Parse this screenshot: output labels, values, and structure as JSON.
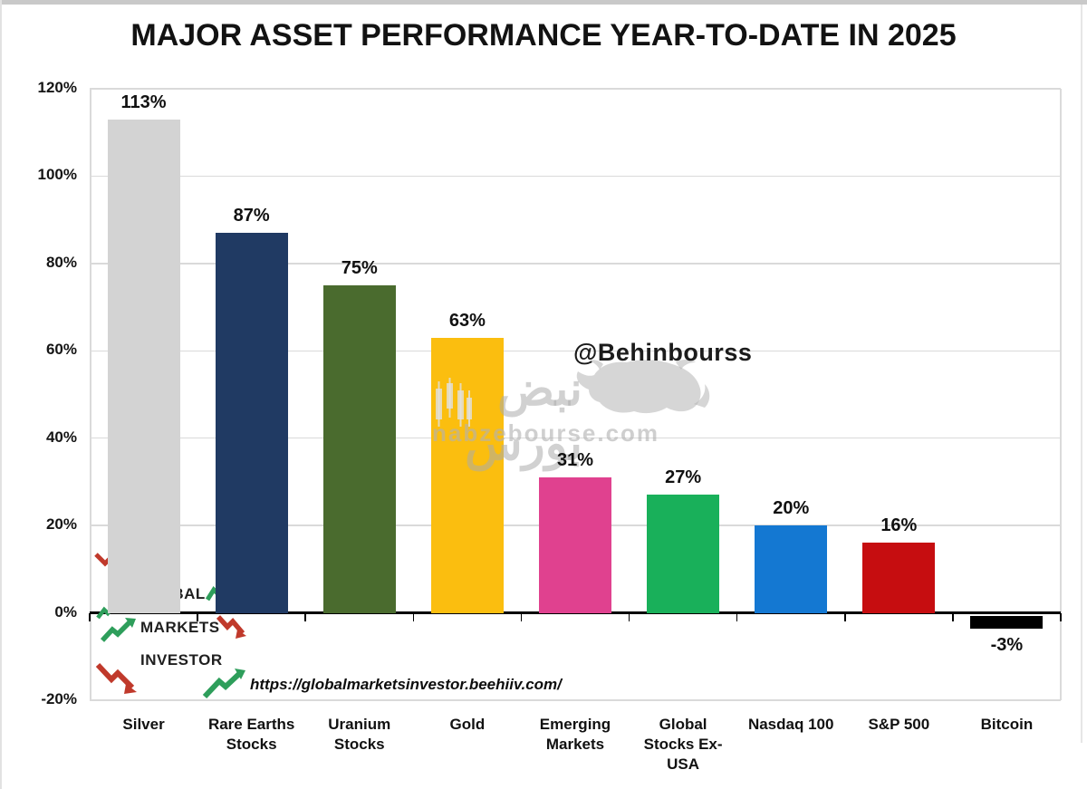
{
  "title": "MAJOR ASSET PERFORMANCE YEAR-TO-DATE IN 2025",
  "watermarks": {
    "handle": "@Behinbourss",
    "site_name": "نبض بورس",
    "site_domain": "nabzebourse.com"
  },
  "source_logo": {
    "line1": "GLOBAL",
    "line2": "MARKETS",
    "line3": "INVESTOR",
    "url": "https://globalmarketsinvestor.beehiiv.com/"
  },
  "chart_data": {
    "type": "bar",
    "title": "MAJOR ASSET PERFORMANCE YEAR-TO-DATE IN 2025",
    "categories": [
      "Silver",
      "Rare Earths Stocks",
      "Uranium Stocks",
      "Gold",
      "Emerging Markets",
      "Global Stocks Ex-USA",
      "Nasdaq 100",
      "S&P 500",
      "Bitcoin"
    ],
    "category_lines": [
      [
        "Silver"
      ],
      [
        "Rare Earths",
        "Stocks"
      ],
      [
        "Uranium",
        "Stocks"
      ],
      [
        "Gold"
      ],
      [
        "Emerging",
        "Markets"
      ],
      [
        "Global",
        "Stocks Ex-",
        "USA"
      ],
      [
        "Nasdaq 100"
      ],
      [
        "S&P 500"
      ],
      [
        "Bitcoin"
      ]
    ],
    "values": [
      113,
      87,
      75,
      63,
      31,
      27,
      20,
      16,
      -3
    ],
    "labels": [
      "113%",
      "87%",
      "75%",
      "63%",
      "31%",
      "27%",
      "20%",
      "16%",
      "-3%"
    ],
    "colors": [
      "#D3D3D3",
      "#203A63",
      "#4A6B2E",
      "#FBBE0F",
      "#E0418F",
      "#19B05A",
      "#1478D2",
      "#C60D10",
      "#000000"
    ],
    "xlabel": "",
    "ylabel": "",
    "ylim": [
      -20,
      120
    ],
    "y_ticks": [
      "120%",
      "100%",
      "80%",
      "60%",
      "40%",
      "20%",
      "0%",
      "-20%"
    ],
    "y_tick_values": [
      120,
      100,
      80,
      60,
      40,
      20,
      0,
      -20
    ],
    "grid": true,
    "legend": false,
    "bar_label_color": "#111111",
    "accent_green": "#2E9E5B",
    "accent_red": "#C0392B"
  }
}
